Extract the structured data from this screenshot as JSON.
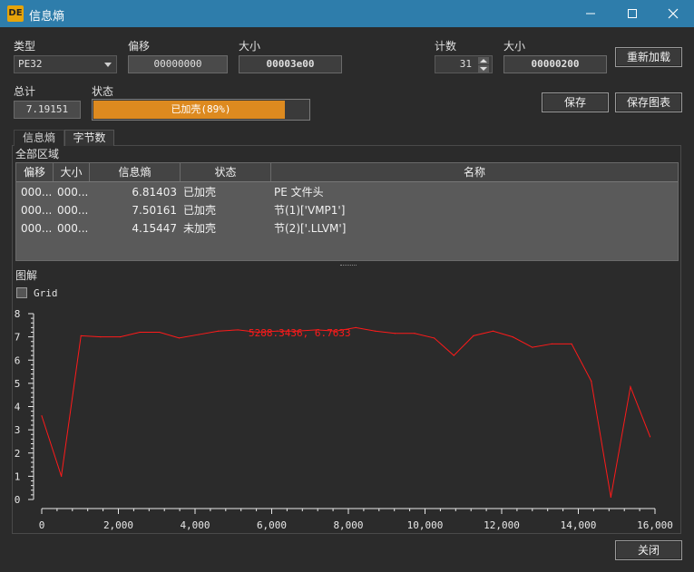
{
  "window": {
    "title": "信息熵",
    "icon_text": "DE"
  },
  "controls": {
    "type_label": "类型",
    "type_value": "PE32",
    "offset_label": "偏移",
    "offset_value": "00000000",
    "size_label": "大小",
    "size_value": "00003e00",
    "count_label": "计数",
    "count_value": "31",
    "size2_label": "大小",
    "size2_value": "00000200",
    "reload_button": "重新加载",
    "total_label": "总计",
    "total_value": "7.19151",
    "status_label": "状态",
    "status_text": "已加壳(89%)",
    "status_progress": 0.89,
    "save_button": "保存",
    "save_chart_button": "保存图表",
    "close_button": "关闭"
  },
  "tabs": [
    {
      "label": "信息熵",
      "active": false
    },
    {
      "label": "字节数",
      "active": true
    }
  ],
  "regions": {
    "title": "全部区域",
    "columns": [
      "偏移",
      "大小",
      "信息熵",
      "状态",
      "名称"
    ],
    "rows": [
      [
        "000...",
        "000...",
        "6.81403",
        "已加壳",
        "PE 文件头"
      ],
      [
        "000...",
        "000...",
        "7.50161",
        "已加壳",
        "节(1)['VMP1']"
      ],
      [
        "000...",
        "000...",
        "4.15447",
        "未加壳",
        "节(2)['.LLVM']"
      ]
    ]
  },
  "chart_section": {
    "title": "图解",
    "grid_label": "Grid",
    "grid_checked": false
  },
  "chart_data": {
    "type": "line",
    "color": "#ff1a1a",
    "annotation": "5288.3436, 6.7633",
    "xlim": [
      0,
      16000
    ],
    "ylim": [
      0,
      8
    ],
    "xticks": [
      "0",
      "2,000",
      "4,000",
      "6,000",
      "8,000",
      "10,000",
      "12,000",
      "14,000",
      "16,000"
    ],
    "yticks": [
      "0",
      "1",
      "2",
      "3",
      "4",
      "5",
      "6",
      "7",
      "8"
    ],
    "grid": false,
    "x": [
      0,
      512,
      1024,
      1536,
      2048,
      2560,
      3072,
      3584,
      4096,
      4608,
      5120,
      5632,
      6144,
      6656,
      7168,
      7680,
      8192,
      8704,
      9216,
      9728,
      10240,
      10752,
      11264,
      11776,
      12288,
      12800,
      13312,
      13824,
      14336,
      14848,
      15360,
      15872
    ],
    "y": [
      3.6,
      1.0,
      7.05,
      7.0,
      7.0,
      7.2,
      7.2,
      6.95,
      7.1,
      7.25,
      7.3,
      7.2,
      7.25,
      7.25,
      7.3,
      7.25,
      7.4,
      7.25,
      7.15,
      7.15,
      6.95,
      6.2,
      7.05,
      7.25,
      7.0,
      6.55,
      6.7,
      6.7,
      5.1,
      0.1,
      4.85,
      2.7
    ]
  }
}
